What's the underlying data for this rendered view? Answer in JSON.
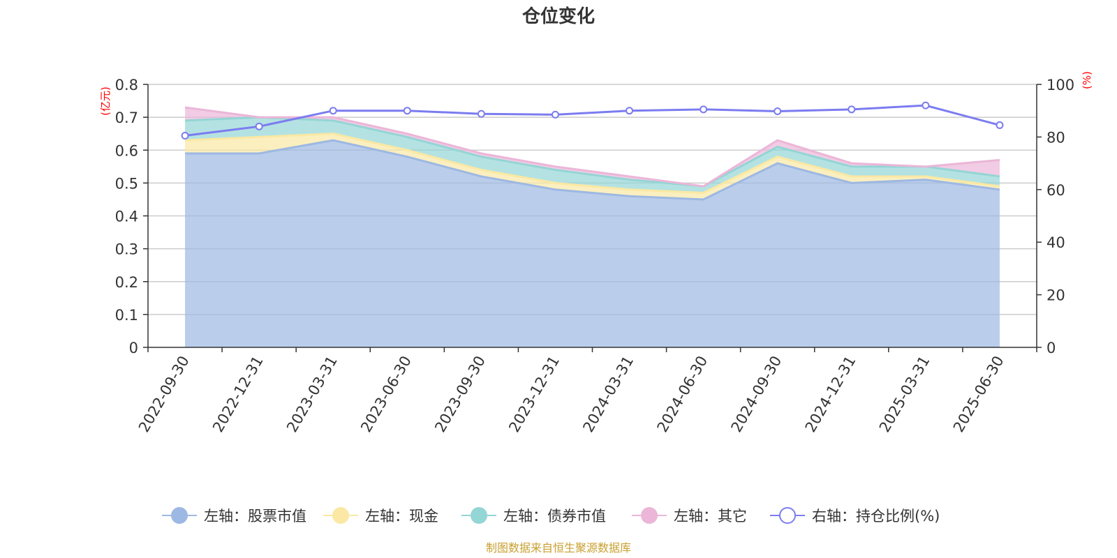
{
  "chart_data": {
    "type": "area",
    "title": "仓位变化",
    "categories": [
      "2022-09-30",
      "2022-12-31",
      "2023-03-31",
      "2023-06-30",
      "2023-09-30",
      "2023-12-31",
      "2024-03-31",
      "2024-06-30",
      "2024-09-30",
      "2024-12-31",
      "2025-03-31",
      "2025-06-30"
    ],
    "left_axis": {
      "unit": "(亿元)",
      "ylim": [
        0,
        0.8
      ],
      "ticks": [
        "0",
        "0.1",
        "0.2",
        "0.3",
        "0.4",
        "0.5",
        "0.6",
        "0.7",
        "0.8"
      ]
    },
    "right_axis": {
      "unit": "(%)",
      "ylim": [
        0,
        100
      ],
      "ticks": [
        "0",
        "20",
        "40",
        "60",
        "80",
        "100"
      ]
    },
    "series": [
      {
        "name": "左轴：股票市值",
        "axis": "left",
        "stacked": true,
        "color": "#9db8e2",
        "values": [
          0.59,
          0.59,
          0.63,
          0.58,
          0.52,
          0.48,
          0.46,
          0.45,
          0.56,
          0.5,
          0.51,
          0.48
        ]
      },
      {
        "name": "左轴：现金",
        "axis": "left",
        "stacked": true,
        "color": "#fae8a4",
        "values": [
          0.04,
          0.05,
          0.02,
          0.02,
          0.02,
          0.02,
          0.02,
          0.02,
          0.02,
          0.02,
          0.01,
          0.01
        ]
      },
      {
        "name": "左轴：债券市值",
        "axis": "left",
        "stacked": true,
        "color": "#94d5d5",
        "values": [
          0.06,
          0.06,
          0.04,
          0.04,
          0.04,
          0.04,
          0.03,
          0.02,
          0.03,
          0.03,
          0.03,
          0.03
        ]
      },
      {
        "name": "左轴：其它",
        "axis": "left",
        "stacked": true,
        "color": "#ebb6d8",
        "values": [
          0.04,
          0.0,
          0.01,
          0.01,
          0.01,
          0.01,
          0.01,
          0.0,
          0.02,
          0.01,
          0.0,
          0.05
        ]
      },
      {
        "name": "右轴：持仓比例(%)",
        "axis": "right",
        "type": "line",
        "color": "#7b7cf0",
        "values": [
          80.5,
          84.0,
          90.0,
          90.0,
          88.8,
          88.5,
          90.0,
          90.5,
          89.8,
          90.5,
          92.0,
          84.5
        ]
      }
    ],
    "legend_position": "bottom",
    "grid": true,
    "source_note": "制图数据来自恒生聚源数据库"
  }
}
